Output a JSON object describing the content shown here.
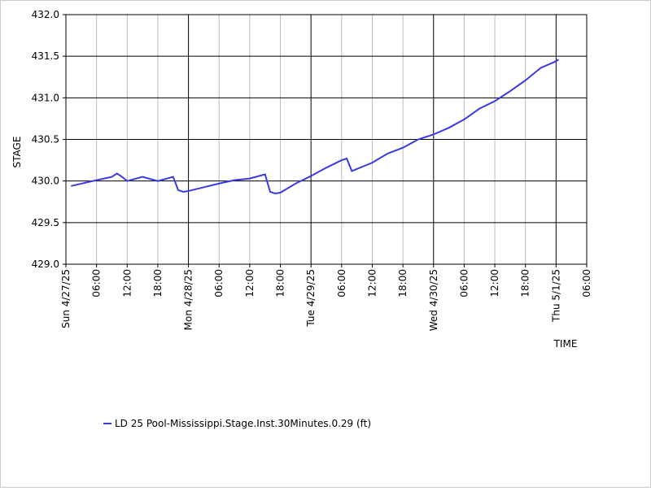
{
  "chart_data": {
    "type": "line",
    "x_label": "TIME",
    "y_label": "STAGE",
    "x": [
      "2025-04-27T01:00",
      "2025-04-27T06:00",
      "2025-04-27T09:00",
      "2025-04-27T10:00",
      "2025-04-27T11:00",
      "2025-04-27T12:00",
      "2025-04-27T15:00",
      "2025-04-27T18:00",
      "2025-04-27T21:00",
      "2025-04-27T22:00",
      "2025-04-27T23:00",
      "2025-04-28T00:00",
      "2025-04-28T06:00",
      "2025-04-28T09:00",
      "2025-04-28T12:00",
      "2025-04-28T15:00",
      "2025-04-28T16:00",
      "2025-04-28T17:00",
      "2025-04-28T18:00",
      "2025-04-28T21:00",
      "2025-04-29T00:00",
      "2025-04-29T03:00",
      "2025-04-29T06:00",
      "2025-04-29T07:00",
      "2025-04-29T08:00",
      "2025-04-29T12:00",
      "2025-04-29T15:00",
      "2025-04-29T18:00",
      "2025-04-29T21:00",
      "2025-04-30T00:00",
      "2025-04-30T03:00",
      "2025-04-30T06:00",
      "2025-04-30T09:00",
      "2025-04-30T12:00",
      "2025-04-30T15:00",
      "2025-04-30T18:00",
      "2025-04-30T21:00",
      "2025-05-01T00:00",
      "2025-05-01T00:30"
    ],
    "series": [
      {
        "name": "LD 25 Pool-Mississippi.Stage.Inst.30Minutes.0.29 (ft)",
        "color": "#3a3ae0",
        "values": [
          429.94,
          430.01,
          430.05,
          430.09,
          430.05,
          430.0,
          430.05,
          430.0,
          430.05,
          429.89,
          429.87,
          429.88,
          429.97,
          430.01,
          430.03,
          430.08,
          429.87,
          429.85,
          429.86,
          429.97,
          430.06,
          430.16,
          430.25,
          430.27,
          430.12,
          430.22,
          430.33,
          430.4,
          430.5,
          430.56,
          430.64,
          430.74,
          430.87,
          430.96,
          431.08,
          431.21,
          431.36,
          431.44,
          431.46
        ]
      }
    ],
    "xlim": [
      "2025-04-27T00:00",
      "2025-05-01T06:00"
    ],
    "xticks": [
      {
        "value": "2025-04-27T00:00",
        "label": "Sun 4/27/25"
      },
      {
        "value": "2025-04-27T06:00",
        "label": "06:00"
      },
      {
        "value": "2025-04-27T12:00",
        "label": "12:00"
      },
      {
        "value": "2025-04-27T18:00",
        "label": "18:00"
      },
      {
        "value": "2025-04-28T00:00",
        "label": "Mon 4/28/25"
      },
      {
        "value": "2025-04-28T06:00",
        "label": "06:00"
      },
      {
        "value": "2025-04-28T12:00",
        "label": "12:00"
      },
      {
        "value": "2025-04-28T18:00",
        "label": "18:00"
      },
      {
        "value": "2025-04-29T00:00",
        "label": "Tue 4/29/25"
      },
      {
        "value": "2025-04-29T06:00",
        "label": "06:00"
      },
      {
        "value": "2025-04-29T12:00",
        "label": "12:00"
      },
      {
        "value": "2025-04-29T18:00",
        "label": "18:00"
      },
      {
        "value": "2025-04-30T00:00",
        "label": "Wed 4/30/25"
      },
      {
        "value": "2025-04-30T06:00",
        "label": "06:00"
      },
      {
        "value": "2025-04-30T12:00",
        "label": "12:00"
      },
      {
        "value": "2025-04-30T18:00",
        "label": "18:00"
      },
      {
        "value": "2025-05-01T00:00",
        "label": "Thu 5/1/25"
      },
      {
        "value": "2025-05-01T06:00",
        "label": "06:00"
      }
    ],
    "ylim": [
      429.0,
      432.0
    ],
    "yticks": [
      {
        "value": 429.0,
        "label": "429.0"
      },
      429.5,
      {
        "value": 430.0,
        "label": "430.0"
      },
      430.5,
      {
        "value": 431.0,
        "label": "431.0"
      },
      431.5,
      {
        "value": 432.0,
        "label": "432.0"
      }
    ],
    "grid": true
  }
}
